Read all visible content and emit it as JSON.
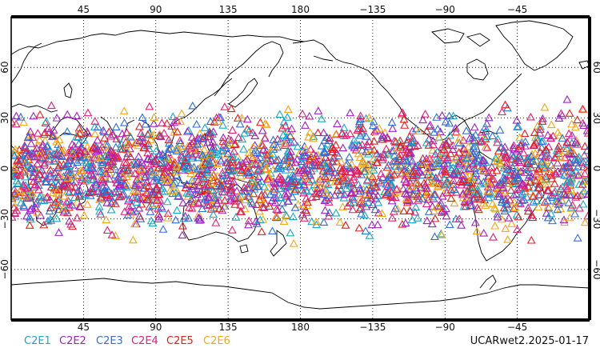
{
  "map": {
    "lon_range": [
      0,
      360
    ],
    "lat_range": [
      -90,
      90
    ],
    "grid": "dotted",
    "top_lon_labels": [
      {
        "lon": 45,
        "label": "45"
      },
      {
        "lon": 90,
        "label": "90"
      },
      {
        "lon": 135,
        "label": "135"
      },
      {
        "lon": 180,
        "label": "180"
      },
      {
        "lon": 225,
        "label": "−135"
      },
      {
        "lon": 270,
        "label": "−90"
      },
      {
        "lon": 315,
        "label": "−45"
      }
    ],
    "bottom_lon_labels": [
      {
        "lon": 45,
        "label": "45"
      },
      {
        "lon": 90,
        "label": "90"
      },
      {
        "lon": 135,
        "label": "135"
      },
      {
        "lon": 180,
        "label": "180"
      },
      {
        "lon": 225,
        "label": "−135"
      },
      {
        "lon": 270,
        "label": "−90"
      },
      {
        "lon": 315,
        "label": "−45"
      }
    ],
    "lat_labels": [
      {
        "lat": 60,
        "label": "60"
      },
      {
        "lat": 30,
        "label": "30"
      },
      {
        "lat": 0,
        "label": "0"
      },
      {
        "lat": -30,
        "label": "−30"
      },
      {
        "lat": -60,
        "label": "−60"
      }
    ],
    "marker_symbol": "triangle",
    "marker_lat_band": [
      -48,
      44
    ]
  },
  "legend": [
    {
      "label": "C2E1",
      "color": "#19a9c8"
    },
    {
      "label": "C2E2",
      "color": "#a020c0"
    },
    {
      "label": "C2E3",
      "color": "#2f6fd6"
    },
    {
      "label": "C2E4",
      "color": "#e0207a"
    },
    {
      "label": "C2E5",
      "color": "#e02020"
    },
    {
      "label": "C2E6",
      "color": "#f2a818"
    }
  ],
  "stamp": "UCARwet2.2025-01-17",
  "colors": {
    "frame": "#000000",
    "coast": "#000000",
    "grid": "#000000",
    "background": "#ffffff"
  }
}
